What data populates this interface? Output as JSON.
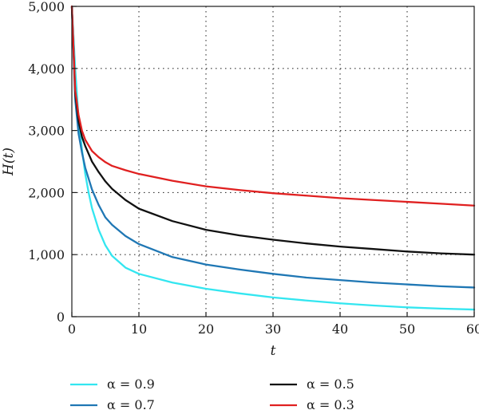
{
  "chart_data": {
    "type": "line",
    "xlabel": "t",
    "ylabel": "H(t)",
    "xlim": [
      0,
      60
    ],
    "ylim": [
      0,
      5000
    ],
    "xticks": [
      0,
      10,
      20,
      30,
      40,
      50,
      60
    ],
    "yticks": [
      0,
      1000,
      2000,
      3000,
      4000,
      5000
    ],
    "xtick_labels": [
      "0",
      "10",
      "20",
      "30",
      "40",
      "50",
      "60"
    ],
    "ytick_labels": [
      "0",
      "1,000",
      "2,000",
      "3,000",
      "4,000",
      "5,000"
    ],
    "grid": true,
    "legend_position": "bottom",
    "series": [
      {
        "name": "α = 0.9",
        "color": "#33e6f0",
        "x": [
          0,
          0.5,
          1,
          1.5,
          2,
          2.5,
          3,
          4,
          5,
          6,
          8,
          10,
          15,
          20,
          25,
          30,
          35,
          40,
          45,
          50,
          55,
          60
        ],
        "y": [
          5000,
          4000,
          3200,
          2700,
          2300,
          2000,
          1750,
          1400,
          1150,
          980,
          790,
          690,
          550,
          450,
          375,
          310,
          260,
          215,
          180,
          150,
          130,
          115
        ]
      },
      {
        "name": "α = 0.7",
        "color": "#1f77b4",
        "x": [
          0,
          0.5,
          1,
          1.5,
          2,
          3,
          4,
          5,
          6,
          8,
          10,
          15,
          20,
          25,
          30,
          35,
          40,
          45,
          50,
          55,
          60
        ],
        "y": [
          5000,
          3500,
          2950,
          2650,
          2400,
          2050,
          1800,
          1600,
          1480,
          1300,
          1170,
          960,
          840,
          760,
          690,
          630,
          590,
          550,
          520,
          490,
          470
        ]
      },
      {
        "name": "α = 0.5",
        "color": "#111111",
        "x": [
          0,
          0.5,
          1,
          1.5,
          2,
          3,
          4,
          5,
          6,
          8,
          10,
          15,
          20,
          25,
          30,
          35,
          40,
          45,
          50,
          55,
          60
        ],
        "y": [
          5000,
          3600,
          3150,
          2900,
          2750,
          2500,
          2330,
          2180,
          2060,
          1880,
          1740,
          1540,
          1400,
          1310,
          1240,
          1180,
          1130,
          1090,
          1050,
          1020,
          1000
        ]
      },
      {
        "name": "α = 0.3",
        "color": "#e02020",
        "x": [
          0,
          0.5,
          1,
          1.5,
          2,
          3,
          4,
          5,
          6,
          8,
          10,
          15,
          20,
          25,
          30,
          35,
          40,
          45,
          50,
          55,
          60
        ],
        "y": [
          5000,
          3650,
          3250,
          3000,
          2850,
          2670,
          2570,
          2490,
          2430,
          2360,
          2300,
          2190,
          2100,
          2040,
          1990,
          1950,
          1910,
          1880,
          1850,
          1820,
          1790
        ]
      }
    ],
    "legend_order": [
      "α = 0.9",
      "α = 0.5",
      "α = 0.7",
      "α = 0.3"
    ]
  }
}
